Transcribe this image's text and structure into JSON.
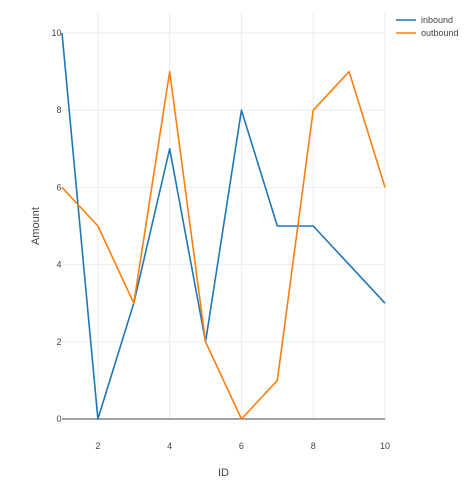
{
  "chart_data": {
    "type": "line",
    "title": "",
    "xlabel": "ID",
    "ylabel": "Amount",
    "x": [
      1,
      2,
      3,
      4,
      5,
      6,
      7,
      8,
      9,
      10
    ],
    "xlim": [
      1,
      10
    ],
    "ylim": [
      0,
      10
    ],
    "xticks": [
      2,
      4,
      6,
      8,
      10
    ],
    "yticks": [
      0,
      2,
      4,
      6,
      8,
      10
    ],
    "grid": true,
    "legend_position": "top-right",
    "series": [
      {
        "name": "inbound",
        "color": "#1f77b4",
        "values": [
          10,
          0,
          3,
          7,
          2,
          8,
          5,
          5,
          4,
          3
        ]
      },
      {
        "name": "outbound",
        "color": "#ff7f0e",
        "values": [
          6,
          5,
          3,
          9,
          2,
          0,
          1,
          8,
          9,
          6
        ]
      }
    ]
  }
}
